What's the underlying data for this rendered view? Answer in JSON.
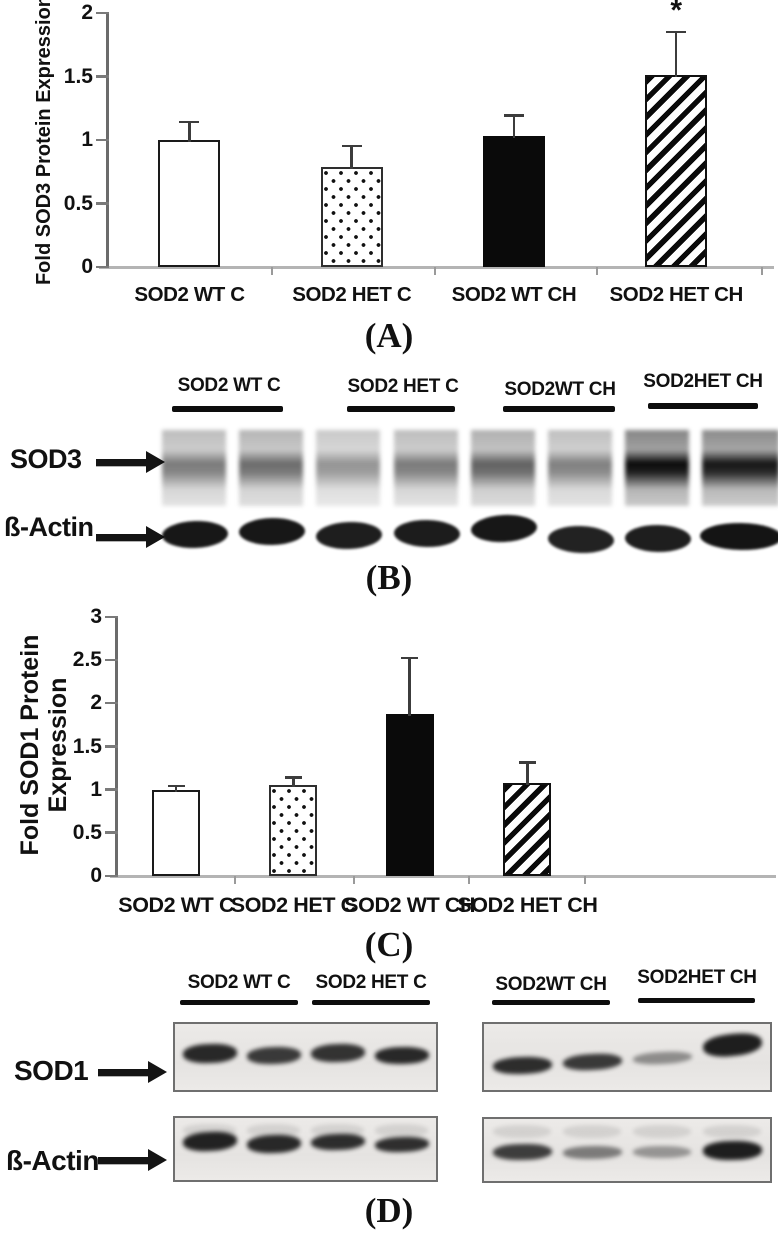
{
  "panel_labels": {
    "A": "(A)",
    "B": "(B)",
    "C": "(C)",
    "D": "(D)"
  },
  "colors": {
    "bar_black": "#0a0a0a",
    "axis_gray": "#b4b4b4",
    "text": "#111111"
  },
  "chart_data": [
    {
      "panel": "A",
      "type": "bar",
      "title": "",
      "ylabel": "Fold SOD3 Protein Expression",
      "xlabel": "",
      "categories": [
        "SOD2 WT C",
        "SOD2 HET C",
        "SOD2 WT CH",
        "SOD2 HET CH"
      ],
      "values": [
        1.0,
        0.79,
        1.03,
        1.51
      ],
      "errors_upper": [
        0.14,
        0.16,
        0.16,
        0.34
      ],
      "significance": [
        "",
        "",
        "",
        "*"
      ],
      "bar_styles": [
        "open",
        "dotted",
        "solid-black",
        "diagonal-hatch"
      ],
      "ylim": [
        0,
        2
      ],
      "yticks": [
        0,
        0.5,
        1,
        1.5,
        2
      ],
      "grid": false,
      "legend": false
    },
    {
      "panel": "C",
      "type": "bar",
      "title": "",
      "ylabel": "Fold SOD1 Protein Expression",
      "ylabel_lines": [
        "Fold SOD1 Protein",
        "Expression"
      ],
      "xlabel": "",
      "categories": [
        "SOD2 WT C",
        "SOD2 HET C",
        "SOD2 WT CH",
        "SOD2 HET CH"
      ],
      "values": [
        1.0,
        1.05,
        1.88,
        1.08
      ],
      "errors_upper": [
        0.04,
        0.09,
        0.64,
        0.23
      ],
      "significance": [
        "",
        "",
        "",
        ""
      ],
      "bar_styles": [
        "open",
        "dotted",
        "solid-black",
        "diagonal-hatch"
      ],
      "ylim": [
        0,
        3
      ],
      "yticks": [
        0,
        0.5,
        1,
        1.5,
        2,
        2.5,
        3
      ],
      "grid": false,
      "legend": false
    }
  ],
  "blots": {
    "B": {
      "group_labels": [
        "SOD2 WT C",
        "SOD2 HET C",
        "SOD2WT CH",
        "SOD2HET CH"
      ],
      "rows": [
        {
          "name": "SOD3",
          "lane_intensities": [
            0.52,
            0.58,
            0.42,
            0.52,
            0.62,
            0.5,
            0.97,
            0.92
          ]
        },
        {
          "name": "ß-Actin",
          "lane_intensities": [
            0.95,
            0.95,
            0.92,
            0.93,
            0.95,
            0.9,
            0.92,
            0.96
          ],
          "lane_dy": [
            1,
            -2,
            2,
            0,
            -5,
            6,
            5,
            3
          ]
        }
      ]
    },
    "D": {
      "group_labels": [
        "SOD2 WT C",
        "SOD2 HET C",
        "SOD2WT CH",
        "SOD2HET CH"
      ],
      "row_labels": [
        "SOD1",
        "ß-Actin"
      ],
      "boxes": [
        {
          "row": "SOD1",
          "side": "left",
          "bands": [
            {
              "intensity": 0.9,
              "dy": -4,
              "height": 19,
              "tilt": -2
            },
            {
              "intensity": 0.82,
              "dy": -2,
              "height": 17,
              "tilt": -2
            },
            {
              "intensity": 0.85,
              "dy": -4,
              "height": 18,
              "tilt": -2
            },
            {
              "intensity": 0.9,
              "dy": -2,
              "height": 17,
              "tilt": -1
            }
          ]
        },
        {
          "row": "SOD1",
          "side": "right",
          "bands": [
            {
              "intensity": 0.88,
              "dy": 8,
              "height": 17,
              "tilt": -2
            },
            {
              "intensity": 0.82,
              "dy": 5,
              "height": 16,
              "tilt": -3
            },
            {
              "intensity": 0.42,
              "dy": 1,
              "height": 12,
              "tilt": -3
            },
            {
              "intensity": 0.95,
              "dy": -12,
              "height": 22,
              "tilt": -6
            }
          ]
        },
        {
          "row": "ß-Actin",
          "side": "left",
          "ghost_smudges": true,
          "bands": [
            {
              "intensity": 0.93,
              "dy": -8,
              "height": 19,
              "tilt": -3
            },
            {
              "intensity": 0.9,
              "dy": -5,
              "height": 18,
              "tilt": -2
            },
            {
              "intensity": 0.88,
              "dy": -7,
              "height": 16,
              "tilt": -2
            },
            {
              "intensity": 0.87,
              "dy": -5,
              "height": 15,
              "tilt": -2
            }
          ]
        },
        {
          "row": "ß-Actin",
          "side": "right",
          "ghost_smudges": true,
          "bands": [
            {
              "intensity": 0.8,
              "dy": 2,
              "height": 16,
              "tilt": -1
            },
            {
              "intensity": 0.5,
              "dy": 2,
              "height": 13,
              "tilt": -1
            },
            {
              "intensity": 0.38,
              "dy": 2,
              "height": 12,
              "tilt": 0
            },
            {
              "intensity": 0.95,
              "dy": 0,
              "height": 19,
              "tilt": -1
            }
          ]
        }
      ]
    }
  }
}
